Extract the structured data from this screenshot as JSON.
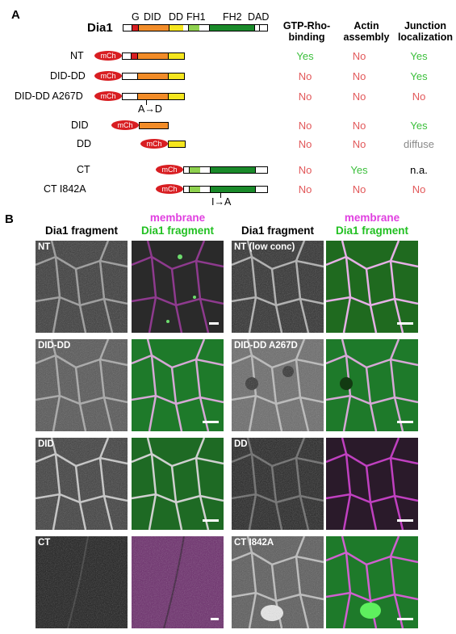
{
  "panel_a": {
    "letter": "A",
    "protein": "Dia1",
    "domains": [
      "G",
      "DID",
      "DD",
      "FH1",
      "FH2",
      "DAD"
    ],
    "columns": [
      "GTP-Rho-binding",
      "Actin assembly",
      "Junction localization"
    ],
    "column_lines": [
      [
        "GTP-Rho-",
        "binding"
      ],
      [
        "Actin",
        "assembly"
      ],
      [
        "Junction",
        "localization"
      ]
    ],
    "tag": "mCh",
    "constructs": [
      {
        "name": "NT",
        "results": [
          "Yes",
          "No",
          "Yes"
        ]
      },
      {
        "name": "DID-DD",
        "results": [
          "No",
          "No",
          "Yes"
        ]
      },
      {
        "name": "DID-DD A267D",
        "results": [
          "No",
          "No",
          "No"
        ],
        "mutation": "A→D"
      },
      {
        "name": "DID",
        "results": [
          "No",
          "No",
          "Yes"
        ]
      },
      {
        "name": "DD",
        "results": [
          "No",
          "No",
          "diffuse"
        ]
      },
      {
        "name": "CT",
        "results": [
          "No",
          "Yes",
          "n.a."
        ]
      },
      {
        "name": "CT I842A",
        "results": [
          "No",
          "No",
          "No"
        ],
        "mutation": "I→A"
      }
    ],
    "colors": {
      "G": "#d81e22",
      "DID": "#f28c28",
      "DD": "#f5e61e",
      "FH1": "#8fd14f",
      "FH2": "#1a8a2a",
      "tag": "#d81e22",
      "yes": "#3bbf3b",
      "no": "#e2585a"
    }
  },
  "panel_b": {
    "letter": "B",
    "headers": {
      "fragment": "Dia1 fragment",
      "membrane": "membrane",
      "fragment_merge": "Dia1 fragment"
    },
    "header_colors": {
      "membrane": "#e040e0",
      "fragment": "#22c022"
    },
    "image_labels": [
      "NT",
      "NT (low conc)",
      "DID-DD",
      "DID-DD A267D",
      "DID",
      "DD",
      "CT",
      "CT I842A"
    ]
  }
}
